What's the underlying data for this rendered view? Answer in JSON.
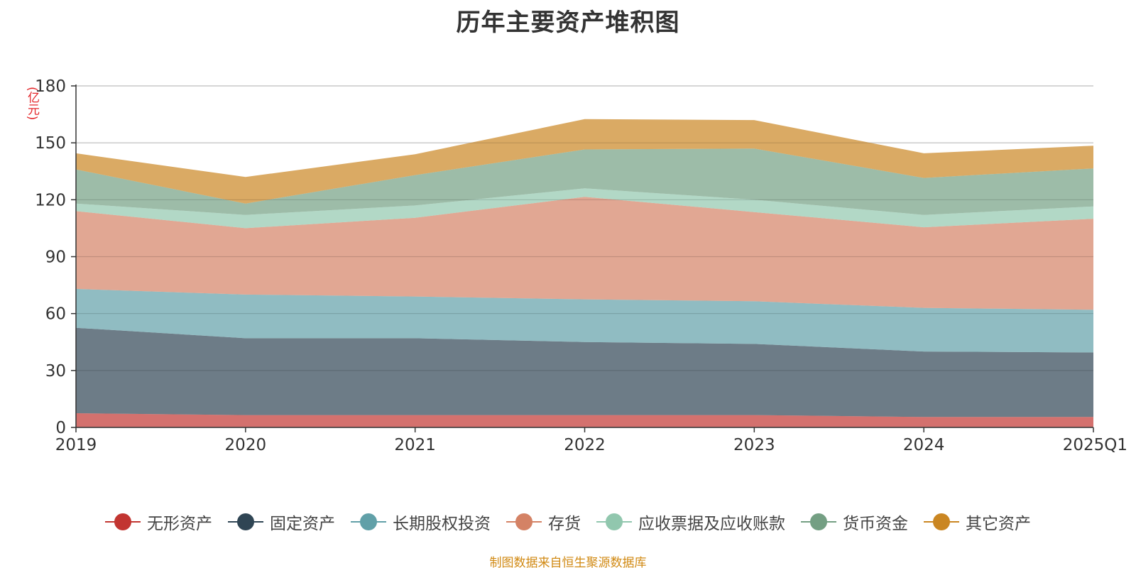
{
  "chart_data": {
    "type": "area",
    "stacked": true,
    "title": "历年主要资产堆积图",
    "y_unit": "(亿元)",
    "ylim": [
      0,
      180
    ],
    "yticks": [
      0,
      30,
      60,
      90,
      120,
      150,
      180
    ],
    "grid": true,
    "legend_position": "bottom",
    "categories": [
      "2019",
      "2020",
      "2021",
      "2022",
      "2023",
      "2024",
      "2025Q1"
    ],
    "series": [
      {
        "name": "无形资产",
        "color": "#c23531",
        "values": [
          7.5,
          6.5,
          6.5,
          6.5,
          6.5,
          5.5,
          5.5
        ]
      },
      {
        "name": "固定资产",
        "color": "#2f4554",
        "values": [
          45,
          40.5,
          40.5,
          38.5,
          37.5,
          34.5,
          34
        ]
      },
      {
        "name": "长期股权投资",
        "color": "#61a0a8",
        "values": [
          20.5,
          23,
          22,
          22.5,
          22.5,
          23,
          22.5
        ]
      },
      {
        "name": "存货",
        "color": "#d48265",
        "values": [
          41,
          35,
          41.5,
          54,
          47,
          42.5,
          48
        ]
      },
      {
        "name": "应收票据及应收账款",
        "color": "#91c7ae",
        "values": [
          4,
          7,
          6.5,
          4.5,
          6.5,
          6.5,
          6.5
        ]
      },
      {
        "name": "货币资金",
        "color": "#749f83",
        "values": [
          18,
          6,
          16,
          20.5,
          27,
          19.5,
          20
        ]
      },
      {
        "name": "其它资产",
        "color": "#ca8622",
        "values": [
          8.5,
          14,
          11,
          16,
          15,
          13,
          12
        ]
      }
    ]
  },
  "source_note": "制图数据来自恒生聚源数据库"
}
